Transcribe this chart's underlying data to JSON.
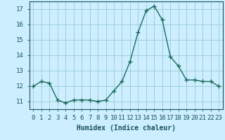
{
  "x": [
    0,
    1,
    2,
    3,
    4,
    5,
    6,
    7,
    8,
    9,
    10,
    11,
    12,
    13,
    14,
    15,
    16,
    17,
    18,
    19,
    20,
    21,
    22,
    23
  ],
  "y": [
    12.0,
    12.3,
    12.2,
    11.1,
    10.9,
    11.1,
    11.1,
    11.1,
    11.0,
    11.1,
    11.7,
    12.3,
    13.6,
    15.5,
    16.9,
    17.2,
    16.3,
    13.9,
    13.3,
    12.4,
    12.4,
    12.3,
    12.3,
    12.0
  ],
  "line_color": "#1a6b5a",
  "marker": "+",
  "marker_size": 4,
  "bg_color": "#cceeff",
  "grid_color": "#99cccc",
  "xlabel": "Humidex (Indice chaleur)",
  "xlim": [
    -0.5,
    23.5
  ],
  "ylim": [
    10.5,
    17.5
  ],
  "yticks": [
    11,
    12,
    13,
    14,
    15,
    16,
    17
  ],
  "xtick_labels": [
    "0",
    "1",
    "2",
    "3",
    "4",
    "5",
    "6",
    "7",
    "8",
    "9",
    "10",
    "11",
    "12",
    "13",
    "14",
    "15",
    "16",
    "17",
    "18",
    "19",
    "20",
    "21",
    "22",
    "23"
  ],
  "label_fontsize": 7,
  "tick_fontsize": 6.5,
  "line_width": 1.0,
  "tick_color": "#1a5555",
  "spine_color": "#1a5555"
}
